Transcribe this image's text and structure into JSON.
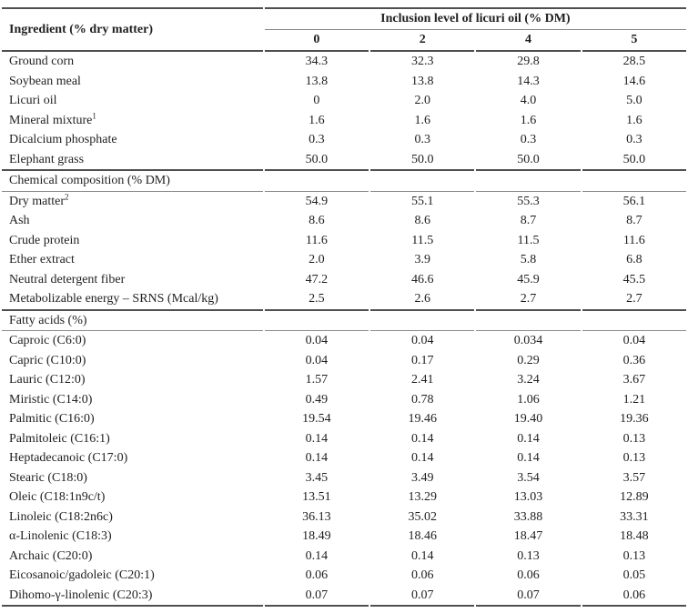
{
  "colors": {
    "background": "#ffffff",
    "text": "#1f1f1f",
    "rule_thick": "#4f4f4f",
    "rule_thin": "#8a8a8a"
  },
  "table": {
    "col_header": {
      "ingredient": "Ingredient (% dry matter)",
      "spanner": "Inclusion level of licuri oil (% DM)",
      "levels": [
        "0",
        "2",
        "4",
        "5"
      ]
    },
    "sections": [
      {
        "title": null,
        "rows": [
          {
            "label": "Ground corn",
            "values": [
              "34.3",
              "32.3",
              "29.8",
              "28.5"
            ]
          },
          {
            "label": "Soybean meal",
            "values": [
              "13.8",
              "13.8",
              "14.3",
              "14.6"
            ]
          },
          {
            "label": "Licuri oil",
            "values": [
              "0",
              "2.0",
              "4.0",
              "5.0"
            ]
          },
          {
            "label": "Mineral mixture",
            "sup": "1",
            "values": [
              "1.6",
              "1.6",
              "1.6",
              "1.6"
            ]
          },
          {
            "label": "Dicalcium phosphate",
            "values": [
              "0.3",
              "0.3",
              "0.3",
              "0.3"
            ]
          },
          {
            "label": "Elephant grass",
            "values": [
              "50.0",
              "50.0",
              "50.0",
              "50.0"
            ]
          }
        ]
      },
      {
        "title": "Chemical composition (% DM)",
        "rows": [
          {
            "label": "Dry matter",
            "sup": "2",
            "values": [
              "54.9",
              "55.1",
              "55.3",
              "56.1"
            ]
          },
          {
            "label": "Ash",
            "values": [
              "8.6",
              "8.6",
              "8.7",
              "8.7"
            ]
          },
          {
            "label": "Crude protein",
            "values": [
              "11.6",
              "11.5",
              "11.5",
              "11.6"
            ]
          },
          {
            "label": "Ether extract",
            "values": [
              "2.0",
              "3.9",
              "5.8",
              "6.8"
            ]
          },
          {
            "label": "Neutral detergent fiber",
            "values": [
              "47.2",
              "46.6",
              "45.9",
              "45.5"
            ]
          },
          {
            "label": "Metabolizable energy – SRNS (Mcal/kg)",
            "values": [
              "2.5",
              "2.6",
              "2.7",
              "2.7"
            ]
          }
        ]
      },
      {
        "title": "Fatty acids (%)",
        "rows": [
          {
            "label": "Caproic (C6:0)",
            "values": [
              "0.04",
              "0.04",
              "0.034",
              "0.04"
            ]
          },
          {
            "label": "Capric (C10:0)",
            "values": [
              "0.04",
              "0.17",
              "0.29",
              "0.36"
            ]
          },
          {
            "label": "Lauric (C12:0)",
            "values": [
              "1.57",
              "2.41",
              "3.24",
              "3.67"
            ]
          },
          {
            "label": "Miristic (C14:0)",
            "values": [
              "0.49",
              "0.78",
              "1.06",
              "1.21"
            ]
          },
          {
            "label": "Palmitic (C16:0)",
            "values": [
              "19.54",
              "19.46",
              "19.40",
              "19.36"
            ]
          },
          {
            "label": "Palmitoleic (C16:1)",
            "values": [
              "0.14",
              "0.14",
              "0.14",
              "0.13"
            ]
          },
          {
            "label": "Heptadecanoic (C17:0)",
            "values": [
              "0.14",
              "0.14",
              "0.14",
              "0.13"
            ]
          },
          {
            "label": "Stearic (C18:0)",
            "values": [
              "3.45",
              "3.49",
              "3.54",
              "3.57"
            ]
          },
          {
            "label": "Oleic (C18:1n9c/t)",
            "values": [
              "13.51",
              "13.29",
              "13.03",
              "12.89"
            ]
          },
          {
            "label": "Linoleic (C18:2n6c)",
            "values": [
              "36.13",
              "35.02",
              "33.88",
              "33.31"
            ]
          },
          {
            "label": "α-Linolenic (C18:3)",
            "values": [
              "18.49",
              "18.46",
              "18.47",
              "18.48"
            ]
          },
          {
            "label": "Archaic (C20:0)",
            "values": [
              "0.14",
              "0.14",
              "0.13",
              "0.13"
            ]
          },
          {
            "label": "Eicosanoic/gadoleic (C20:1)",
            "values": [
              "0.06",
              "0.06",
              "0.06",
              "0.05"
            ]
          },
          {
            "label": "Dihomo-γ-linolenic (C20:3)",
            "values": [
              "0.07",
              "0.07",
              "0.07",
              "0.06"
            ]
          }
        ]
      }
    ]
  }
}
